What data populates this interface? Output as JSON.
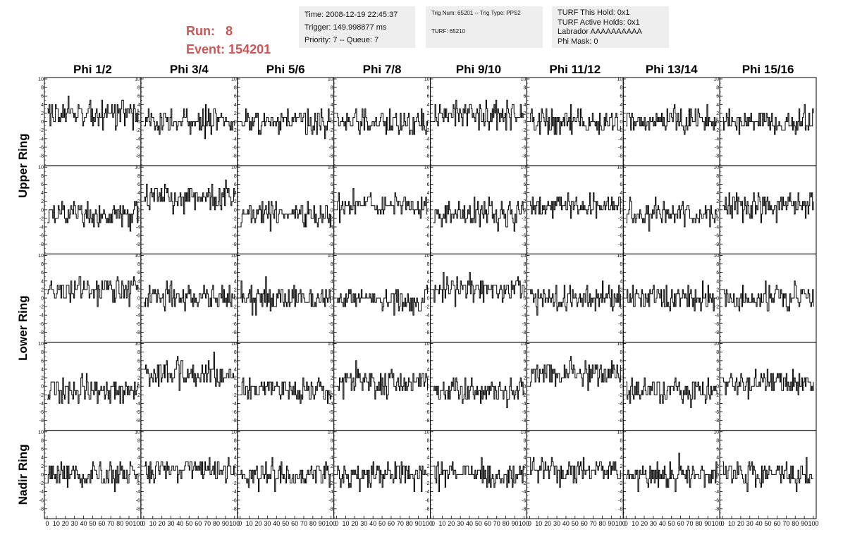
{
  "header": {
    "run_label": "Run:",
    "run_value": "8",
    "event_label": "Event:",
    "event_value": "154201",
    "box1": [
      "Time: 2008-12-19 22:45:37",
      "Trigger: 149.998877 ms",
      "Priority: 7 -- Queue: 7"
    ],
    "box2": [
      "Trig Num: 65201 -- Trig Type: PPS2",
      "TURF: 65210"
    ],
    "box3": [
      "TURF This Hold: 0x1",
      "TURF Active Holds: 0x1",
      "Labrador AAAAAAAAAA",
      "Phi Mask: 0"
    ]
  },
  "colors": {
    "run_text": "#cc5555",
    "info_box_bg": "#eeeeee",
    "trace": "#000000"
  },
  "chart_data": {
    "type": "line",
    "phi_labels": [
      "Phi 1/2",
      "Phi 3/4",
      "Phi 5/6",
      "Phi 7/8",
      "Phi 9/10",
      "Phi 11/12",
      "Phi 13/14",
      "Phi 15/16"
    ],
    "ring_labels": [
      "Upper Ring",
      "Lower Ring",
      "Nadir Ring"
    ],
    "rows": 5,
    "columns": 8,
    "xlim": [
      0,
      100
    ],
    "ylim": [
      -10,
      10
    ],
    "x_tick_labels": [
      "0",
      "10",
      "20",
      "30",
      "40",
      "50",
      "60",
      "70",
      "80",
      "90",
      "100"
    ],
    "y_tick_labels": [
      "-8",
      "-6",
      "-4",
      "-2",
      "0",
      "2",
      "4",
      "6",
      "8",
      "10"
    ],
    "baselines": [
      [
        2,
        0,
        0,
        0,
        2,
        0,
        0,
        0
      ],
      [
        -1,
        3,
        -1,
        1,
        -1,
        1,
        -1,
        1
      ],
      [
        2,
        0,
        0,
        0,
        2,
        0,
        0,
        0
      ],
      [
        -1,
        3,
        -1,
        1,
        -1,
        3,
        -1,
        1
      ],
      [
        0,
        1,
        0,
        0,
        0,
        1,
        0,
        0
      ]
    ]
  }
}
